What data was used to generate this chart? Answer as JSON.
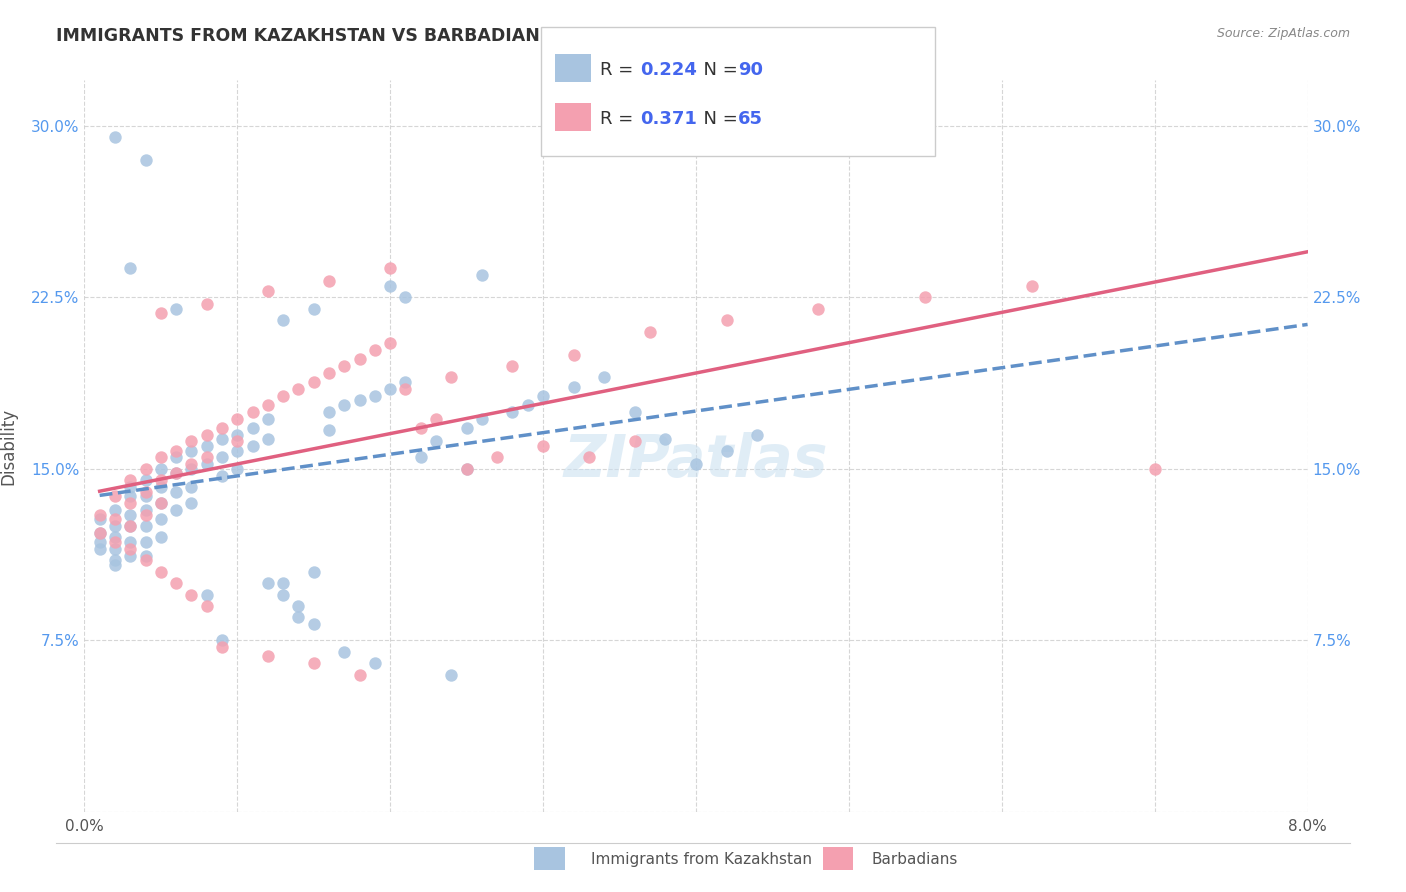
{
  "title": "IMMIGRANTS FROM KAZAKHSTAN VS BARBADIAN DISABILITY CORRELATION CHART",
  "source": "Source: ZipAtlas.com",
  "xlabel_bottom": "",
  "ylabel": "Disability",
  "xlim": [
    0.0,
    0.08
  ],
  "ylim": [
    0.0,
    0.32
  ],
  "xticks": [
    0.0,
    0.01,
    0.02,
    0.03,
    0.04,
    0.05,
    0.06,
    0.07,
    0.08
  ],
  "yticks": [
    0.0,
    0.075,
    0.15,
    0.225,
    0.3
  ],
  "xtick_labels": [
    "0.0%",
    "",
    "",
    "",
    "",
    "",
    "",
    "",
    "8.0%"
  ],
  "ytick_labels": [
    "",
    "7.5%",
    "15.0%",
    "22.5%",
    "30.0%"
  ],
  "color_blue": "#a8c4e0",
  "color_pink": "#f4a0b0",
  "trendline_blue": "#6090c8",
  "trendline_pink": "#e06080",
  "legend_label_blue": "Immigrants from Kazakhstan",
  "legend_label_pink": "Barbadians",
  "legend_R_blue": "R = 0.224",
  "legend_N_blue": "N = 90",
  "legend_R_pink": "R = 0.371",
  "legend_N_pink": "N = 65",
  "R_blue": 0.224,
  "N_blue": 90,
  "R_pink": 0.371,
  "N_pink": 65,
  "watermark": "ZIPatlas",
  "blue_x": [
    0.001,
    0.001,
    0.001,
    0.001,
    0.002,
    0.002,
    0.002,
    0.002,
    0.002,
    0.002,
    0.003,
    0.003,
    0.003,
    0.003,
    0.003,
    0.003,
    0.004,
    0.004,
    0.004,
    0.004,
    0.004,
    0.004,
    0.005,
    0.005,
    0.005,
    0.005,
    0.005,
    0.006,
    0.006,
    0.006,
    0.006,
    0.007,
    0.007,
    0.007,
    0.007,
    0.008,
    0.008,
    0.009,
    0.009,
    0.009,
    0.01,
    0.01,
    0.01,
    0.011,
    0.011,
    0.012,
    0.012,
    0.013,
    0.013,
    0.014,
    0.014,
    0.015,
    0.015,
    0.016,
    0.016,
    0.017,
    0.018,
    0.019,
    0.02,
    0.021,
    0.022,
    0.023,
    0.025,
    0.026,
    0.028,
    0.029,
    0.03,
    0.032,
    0.034,
    0.036,
    0.038,
    0.04,
    0.042,
    0.044,
    0.015,
    0.02,
    0.025,
    0.002,
    0.003,
    0.004,
    0.009,
    0.017,
    0.019,
    0.024,
    0.021,
    0.026,
    0.012,
    0.008,
    0.006,
    0.013
  ],
  "blue_y": [
    0.122,
    0.118,
    0.115,
    0.128,
    0.132,
    0.125,
    0.12,
    0.115,
    0.11,
    0.108,
    0.138,
    0.142,
    0.13,
    0.125,
    0.118,
    0.112,
    0.145,
    0.138,
    0.132,
    0.125,
    0.118,
    0.112,
    0.15,
    0.142,
    0.135,
    0.128,
    0.12,
    0.155,
    0.148,
    0.14,
    0.132,
    0.158,
    0.15,
    0.142,
    0.135,
    0.16,
    0.152,
    0.163,
    0.155,
    0.147,
    0.165,
    0.158,
    0.15,
    0.168,
    0.16,
    0.172,
    0.163,
    0.1,
    0.095,
    0.09,
    0.085,
    0.082,
    0.105,
    0.175,
    0.167,
    0.178,
    0.18,
    0.182,
    0.185,
    0.188,
    0.155,
    0.162,
    0.168,
    0.172,
    0.175,
    0.178,
    0.182,
    0.186,
    0.19,
    0.175,
    0.163,
    0.152,
    0.158,
    0.165,
    0.22,
    0.23,
    0.15,
    0.295,
    0.238,
    0.285,
    0.075,
    0.07,
    0.065,
    0.06,
    0.225,
    0.235,
    0.1,
    0.095,
    0.22,
    0.215
  ],
  "pink_x": [
    0.001,
    0.001,
    0.002,
    0.002,
    0.002,
    0.003,
    0.003,
    0.003,
    0.004,
    0.004,
    0.004,
    0.005,
    0.005,
    0.005,
    0.006,
    0.006,
    0.007,
    0.007,
    0.008,
    0.008,
    0.009,
    0.01,
    0.01,
    0.011,
    0.012,
    0.013,
    0.014,
    0.015,
    0.016,
    0.017,
    0.018,
    0.019,
    0.02,
    0.022,
    0.023,
    0.025,
    0.027,
    0.03,
    0.033,
    0.036,
    0.003,
    0.004,
    0.005,
    0.006,
    0.007,
    0.008,
    0.009,
    0.012,
    0.015,
    0.018,
    0.021,
    0.024,
    0.028,
    0.032,
    0.037,
    0.042,
    0.048,
    0.055,
    0.062,
    0.07,
    0.005,
    0.008,
    0.012,
    0.016,
    0.02
  ],
  "pink_y": [
    0.13,
    0.122,
    0.138,
    0.128,
    0.118,
    0.145,
    0.135,
    0.125,
    0.15,
    0.14,
    0.13,
    0.155,
    0.145,
    0.135,
    0.158,
    0.148,
    0.162,
    0.152,
    0.165,
    0.155,
    0.168,
    0.172,
    0.162,
    0.175,
    0.178,
    0.182,
    0.185,
    0.188,
    0.192,
    0.195,
    0.198,
    0.202,
    0.205,
    0.168,
    0.172,
    0.15,
    0.155,
    0.16,
    0.155,
    0.162,
    0.115,
    0.11,
    0.105,
    0.1,
    0.095,
    0.09,
    0.072,
    0.068,
    0.065,
    0.06,
    0.185,
    0.19,
    0.195,
    0.2,
    0.21,
    0.215,
    0.22,
    0.225,
    0.23,
    0.15,
    0.218,
    0.222,
    0.228,
    0.232,
    0.238
  ]
}
